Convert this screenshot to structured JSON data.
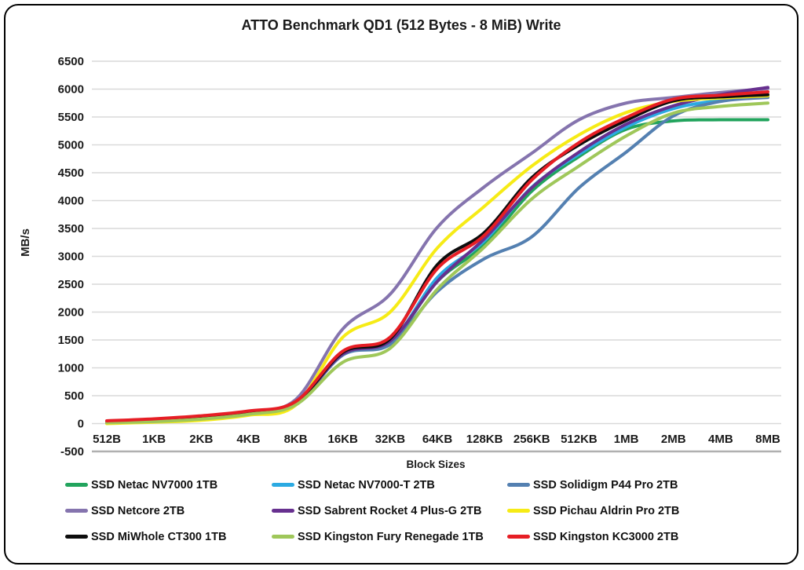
{
  "window": {
    "background": "#ffffff",
    "border_color": "#000000"
  },
  "chart_data": {
    "type": "line",
    "title": "ATTO Benchmark QD1 (512 Bytes - 8 MiB) Write",
    "xlabel": "Block Sizes",
    "ylabel": "MB/s",
    "ylim": [
      -500,
      6500
    ],
    "yticks": [
      6500,
      6000,
      5500,
      5000,
      4500,
      4000,
      3500,
      3000,
      2500,
      2000,
      1500,
      1000,
      500,
      0,
      -500
    ],
    "grid": true,
    "gridline_color": "#d9d9d9",
    "axisline_color": "#b0b0b0",
    "legend_position": "bottom",
    "categories": [
      "512B",
      "1KB",
      "2KB",
      "4KB",
      "8KB",
      "16KB",
      "32KB",
      "64KB",
      "128KB",
      "256KB",
      "512KB",
      "1MB",
      "2MB",
      "4MB",
      "8MB"
    ],
    "series": [
      {
        "name": "SSD Netac NV7000 1TB",
        "color": "#22A45D",
        "values": [
          15,
          40,
          85,
          175,
          345,
          1240,
          1450,
          2550,
          3210,
          4170,
          4790,
          5280,
          5430,
          5450,
          5450
        ]
      },
      {
        "name": "SSD Netac NV7000-T 2TB",
        "color": "#2BAAE2",
        "values": [
          20,
          45,
          90,
          180,
          355,
          1260,
          1450,
          2620,
          3280,
          4240,
          4830,
          5320,
          5650,
          5800,
          5870
        ]
      },
      {
        "name": "SSD Solidigm P44 Pro 2TB",
        "color": "#5480B1",
        "values": [
          20,
          40,
          85,
          175,
          350,
          1230,
          1420,
          2370,
          2960,
          3350,
          4230,
          4870,
          5520,
          5780,
          5850
        ]
      },
      {
        "name": "SSD Netcore 2TB",
        "color": "#8574AE",
        "values": [
          25,
          55,
          110,
          215,
          430,
          1700,
          2320,
          3520,
          4250,
          4850,
          5450,
          5750,
          5850,
          5940,
          6010
        ]
      },
      {
        "name": "SSD Sabrent Rocket 4 Plus-G 2TB",
        "color": "#67308F",
        "values": [
          20,
          45,
          90,
          185,
          360,
          1250,
          1480,
          2550,
          3320,
          4230,
          4870,
          5370,
          5700,
          5900,
          6030
        ]
      },
      {
        "name": "SSD Pichau Aldrin Pro 2TB",
        "color": "#F6EB16",
        "values": [
          0,
          25,
          60,
          150,
          330,
          1550,
          2000,
          3150,
          3900,
          4620,
          5180,
          5580,
          5780,
          5840,
          5880
        ]
      },
      {
        "name": "SSD MiWhole CT300 1TB",
        "color": "#0d0d0d",
        "values": [
          20,
          45,
          95,
          190,
          370,
          1280,
          1520,
          2850,
          3430,
          4410,
          5000,
          5440,
          5790,
          5860,
          5900
        ]
      },
      {
        "name": "SSD Kingston Fury Renegade 1TB",
        "color": "#9FC75A",
        "values": [
          15,
          35,
          80,
          165,
          335,
          1100,
          1350,
          2410,
          3170,
          4030,
          4620,
          5160,
          5570,
          5690,
          5750
        ]
      },
      {
        "name": "SSD Kingston KC3000 2TB",
        "color": "#E61E25",
        "values": [
          50,
          85,
          140,
          225,
          395,
          1300,
          1550,
          2780,
          3380,
          4370,
          5040,
          5490,
          5820,
          5890,
          5950
        ]
      }
    ]
  }
}
